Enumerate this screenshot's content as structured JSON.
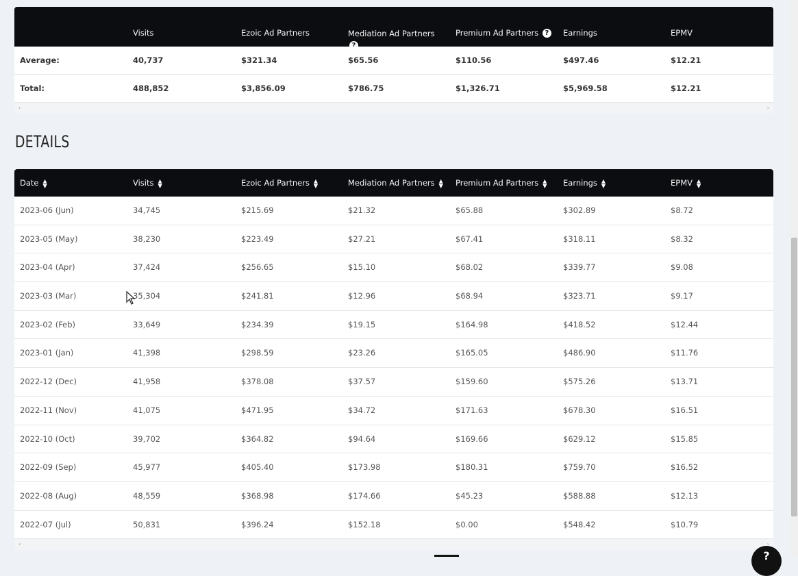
{
  "summary": {
    "headers": [
      "",
      "Visits",
      "Ezoic Ad Partners",
      "Mediation Ad Partners",
      "Premium Ad Partners",
      "Earnings",
      "EPMV"
    ],
    "rows": [
      [
        "Average:",
        "40,737",
        "$321.34",
        "$65.56",
        "$110.56",
        "$497.46",
        "$12.21"
      ],
      [
        "Total:",
        "488,852",
        "$3,856.09",
        "$786.75",
        "$1,326.71",
        "$5,969.58",
        "$12.21"
      ]
    ]
  },
  "details": {
    "title": "DETAILS",
    "headers": [
      "Date",
      "Visits",
      "Ezoic Ad Partners",
      "Mediation Ad Partners",
      "Premium Ad Partners",
      "Earnings",
      "EPMV"
    ],
    "rows": [
      [
        "2023-06 (Jun)",
        "34,745",
        "$215.69",
        "$21.32",
        "$65.88",
        "$302.89",
        "$8.72"
      ],
      [
        "2023-05 (May)",
        "38,230",
        "$223.49",
        "$27.21",
        "$67.41",
        "$318.11",
        "$8.32"
      ],
      [
        "2023-04 (Apr)",
        "37,424",
        "$256.65",
        "$15.10",
        "$68.02",
        "$339.77",
        "$9.08"
      ],
      [
        "2023-03 (Mar)",
        "35,304",
        "$241.81",
        "$12.96",
        "$68.94",
        "$323.71",
        "$9.17"
      ],
      [
        "2023-02 (Feb)",
        "33,649",
        "$234.39",
        "$19.15",
        "$164.98",
        "$418.52",
        "$12.44"
      ],
      [
        "2023-01 (Jan)",
        "41,398",
        "$298.59",
        "$23.26",
        "$165.05",
        "$486.90",
        "$11.76"
      ],
      [
        "2022-12 (Dec)",
        "41,958",
        "$378.08",
        "$37.57",
        "$159.60",
        "$575.26",
        "$13.71"
      ],
      [
        "2022-11 (Nov)",
        "41,075",
        "$471.95",
        "$34.72",
        "$171.63",
        "$678.30",
        "$16.51"
      ],
      [
        "2022-10 (Oct)",
        "39,702",
        "$364.82",
        "$94.64",
        "$169.66",
        "$629.12",
        "$15.85"
      ],
      [
        "2022-09 (Sep)",
        "45,977",
        "$405.40",
        "$173.98",
        "$180.31",
        "$759.70",
        "$16.52"
      ],
      [
        "2022-08 (Aug)",
        "48,559",
        "$368.98",
        "$174.66",
        "$45.23",
        "$588.88",
        "$12.13"
      ],
      [
        "2022-07 (Jul)",
        "50,831",
        "$396.24",
        "$152.18",
        "$0.00",
        "$548.42",
        "$10.79"
      ]
    ]
  },
  "icons": {
    "help": "question-circle-icon",
    "sort": "sort-arrows-icon",
    "scroll_left": "chevron-left-icon",
    "scroll_right": "chevron-right-icon"
  },
  "ui": {
    "help_glyph": "?",
    "sort_glyph_up": "▲",
    "sort_glyph_down": "▼",
    "scroll_left_glyph": "‹",
    "scroll_right_glyph": "›"
  }
}
